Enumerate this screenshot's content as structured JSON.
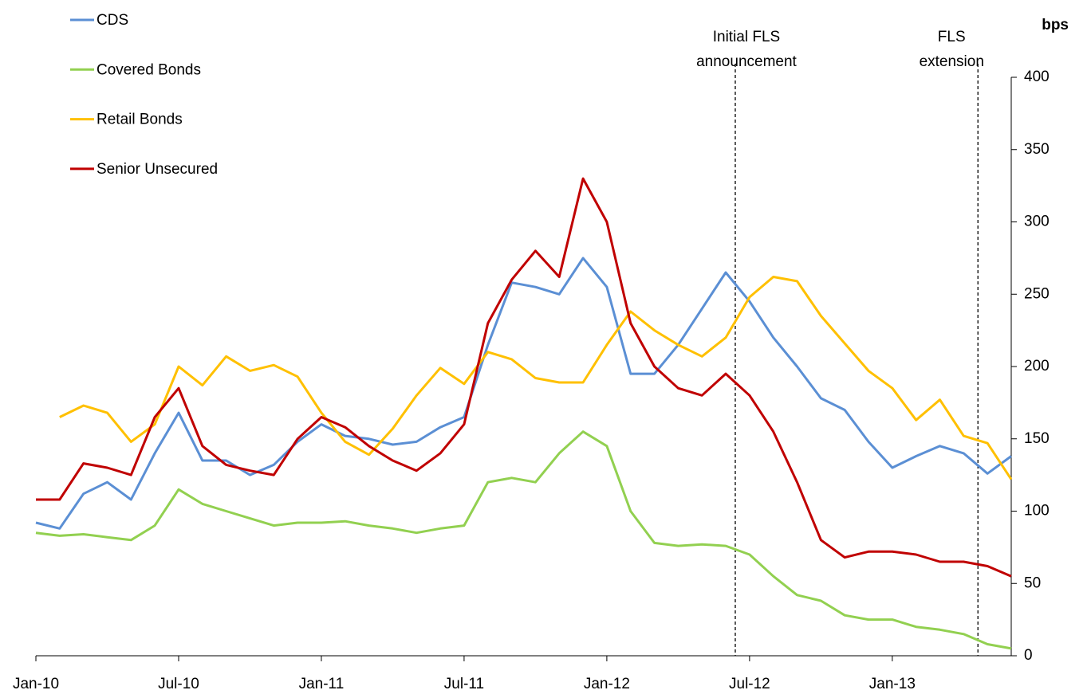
{
  "chart_data": {
    "type": "line",
    "y_label": "bps",
    "x": [
      0,
      1,
      2,
      3,
      4,
      5,
      6,
      7,
      8,
      9,
      10,
      11,
      12,
      13,
      14,
      15,
      16,
      17,
      18,
      19,
      20,
      21,
      22,
      23,
      24,
      25,
      26,
      27,
      28,
      29,
      30,
      31,
      32,
      33,
      34,
      35,
      36,
      37,
      38,
      39,
      40,
      41
    ],
    "xlim": [
      0,
      41
    ],
    "xticks": [
      {
        "value": 0,
        "label": "Jan-10"
      },
      {
        "value": 6,
        "label": "Jul-10"
      },
      {
        "value": 12,
        "label": "Jan-11"
      },
      {
        "value": 18,
        "label": "Jul-11"
      },
      {
        "value": 24,
        "label": "Jan-12"
      },
      {
        "value": 30,
        "label": "Jul-12"
      },
      {
        "value": 36,
        "label": "Jan-13"
      }
    ],
    "ylim": [
      0,
      400
    ],
    "yticks": [
      0,
      50,
      100,
      150,
      200,
      250,
      300,
      350,
      400
    ],
    "legend": "top-left",
    "series": [
      {
        "name": "CDS",
        "color": "#5b8fd4",
        "values": [
          92,
          88,
          112,
          120,
          108,
          140,
          168,
          135,
          135,
          125,
          132,
          148,
          160,
          152,
          150,
          146,
          148,
          158,
          165,
          215,
          258,
          255,
          250,
          275,
          255,
          195,
          195,
          215,
          240,
          265,
          245,
          220,
          200,
          178,
          170,
          148,
          130,
          138,
          145,
          140,
          126,
          138
        ]
      },
      {
        "name": "Covered Bonds",
        "color": "#92d050",
        "values": [
          85,
          83,
          84,
          82,
          80,
          90,
          115,
          105,
          100,
          95,
          90,
          92,
          92,
          93,
          90,
          88,
          85,
          88,
          90,
          120,
          123,
          120,
          140,
          155,
          145,
          100,
          78,
          76,
          77,
          76,
          70,
          55,
          42,
          38,
          28,
          25,
          25,
          20,
          18,
          15,
          8,
          5
        ]
      },
      {
        "name": "Retail Bonds",
        "color": "#ffc000",
        "values": [
          null,
          165,
          173,
          168,
          148,
          160,
          200,
          187,
          207,
          197,
          201,
          193,
          168,
          148,
          139,
          157,
          180,
          199,
          188,
          210,
          205,
          192,
          189,
          189,
          215,
          238,
          225,
          215,
          207,
          220,
          248,
          262,
          259,
          235,
          216,
          197,
          185,
          163,
          177,
          152,
          147,
          122
        ]
      },
      {
        "name": "Senior Unsecured",
        "color": "#c00000",
        "values": [
          108,
          108,
          133,
          130,
          125,
          165,
          185,
          145,
          132,
          128,
          125,
          150,
          165,
          158,
          145,
          135,
          128,
          140,
          160,
          230,
          260,
          280,
          262,
          330,
          300,
          230,
          200,
          185,
          180,
          195,
          180,
          155,
          120,
          80,
          68,
          72,
          72,
          70,
          65,
          65,
          62,
          55
        ]
      }
    ],
    "annotations": [
      {
        "label": [
          "Initial FLS",
          "announcement"
        ],
        "x": 29.4
      },
      {
        "label": [
          "FLS",
          "extension"
        ],
        "x": 39.6
      }
    ]
  }
}
